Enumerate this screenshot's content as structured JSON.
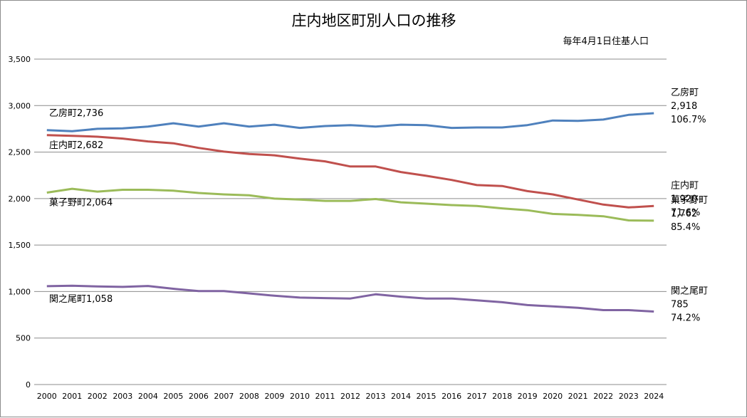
{
  "chart_data": {
    "type": "line",
    "title": "庄内地区町別人口の推移",
    "note": "毎年4月1日住基人口",
    "xlabel": "",
    "ylabel": "",
    "ylim": [
      0,
      3500
    ],
    "yticks": [
      "0",
      "500",
      "1,000",
      "1,500",
      "2,000",
      "2,500",
      "3,000",
      "3,500"
    ],
    "grid": true,
    "x": [
      "2000",
      "2001",
      "2002",
      "2003",
      "2004",
      "2005",
      "2006",
      "2007",
      "2008",
      "2009",
      "2010",
      "2011",
      "2012",
      "2013",
      "2014",
      "2015",
      "2016",
      "2017",
      "2018",
      "2019",
      "2020",
      "2021",
      "2022",
      "2023",
      "2024"
    ],
    "series": [
      {
        "name": "乙房町",
        "color": "#4f81bd",
        "values": [
          2736,
          2725,
          2750,
          2755,
          2775,
          2810,
          2775,
          2810,
          2775,
          2795,
          2760,
          2780,
          2790,
          2775,
          2795,
          2790,
          2760,
          2765,
          2765,
          2790,
          2840,
          2835,
          2850,
          2900,
          2918
        ],
        "start_label": "乙房町2,736",
        "end_name": "乙房町",
        "end_value": "2,918",
        "end_pct": "106.7%"
      },
      {
        "name": "庄内町",
        "color": "#c0504d",
        "values": [
          2682,
          2675,
          2665,
          2645,
          2615,
          2595,
          2545,
          2505,
          2480,
          2465,
          2430,
          2400,
          2345,
          2345,
          2285,
          2245,
          2200,
          2145,
          2135,
          2080,
          2045,
          1990,
          1935,
          1905,
          1920
        ],
        "start_label": "庄内町2,682",
        "end_name": "庄内町",
        "end_value": "1,920",
        "end_pct": "71.6%"
      },
      {
        "name": "菓子野町",
        "color": "#9bbb59",
        "values": [
          2064,
          2105,
          2075,
          2095,
          2095,
          2085,
          2060,
          2045,
          2035,
          2000,
          1990,
          1975,
          1975,
          1995,
          1960,
          1945,
          1930,
          1920,
          1895,
          1875,
          1835,
          1825,
          1810,
          1765,
          1762
        ],
        "start_label": "菓子野町2,064",
        "end_name": "菓子野町",
        "end_value": "1,762",
        "end_pct": "85.4%"
      },
      {
        "name": "関之尾町",
        "color": "#8064a2",
        "values": [
          1058,
          1062,
          1055,
          1050,
          1060,
          1030,
          1005,
          1005,
          980,
          955,
          935,
          930,
          925,
          970,
          945,
          925,
          925,
          905,
          885,
          855,
          840,
          825,
          800,
          800,
          785
        ],
        "start_label": "関之尾町1,058",
        "end_name": "関之尾町",
        "end_value": "785",
        "end_pct": "74.2%"
      }
    ]
  }
}
